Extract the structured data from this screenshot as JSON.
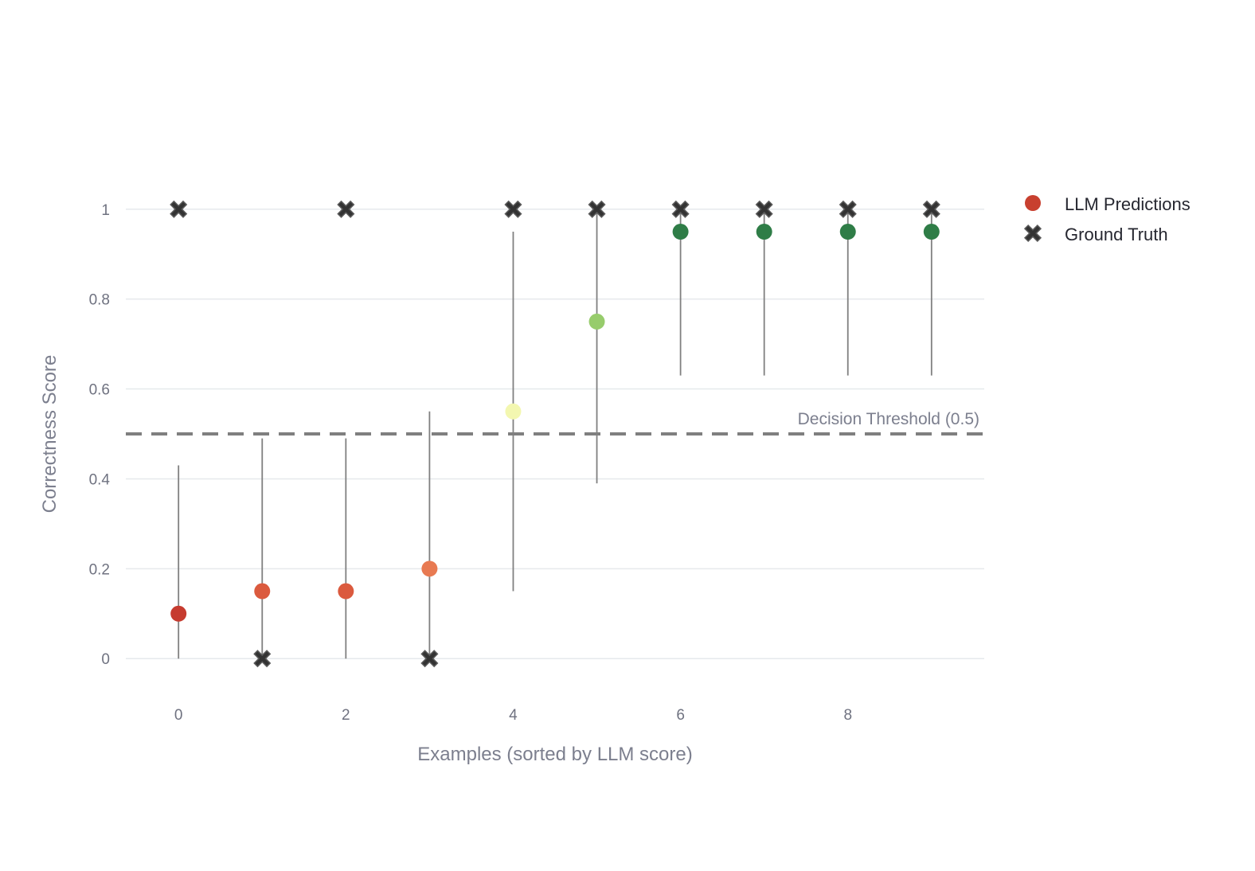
{
  "chart_data": {
    "type": "scatter",
    "title": "",
    "xlabel": "Examples (sorted by LLM score)",
    "ylabel": "Correctness Score",
    "xlim": [
      -0.63,
      9.63
    ],
    "ylim": [
      -0.09,
      1.09
    ],
    "x_ticks": [
      0,
      2,
      4,
      6,
      8
    ],
    "y_ticks": [
      0,
      0.2,
      0.4,
      0.6,
      0.8,
      1
    ],
    "y_tick_labels": [
      "0",
      "0.2",
      "0.4",
      "0.6",
      "0.8",
      "1"
    ],
    "grid": true,
    "legend_position": "top-right",
    "threshold": {
      "value": 0.5,
      "label": "Decision Threshold (0.5)",
      "color": "#7f7f7f",
      "style": "dashed"
    },
    "series": [
      {
        "name": "LLM Predictions",
        "marker": "circle",
        "legend_color": "#c8402f",
        "x": [
          0,
          1,
          2,
          3,
          4,
          5,
          6,
          7,
          8,
          9
        ],
        "y": [
          0.1,
          0.15,
          0.15,
          0.2,
          0.55,
          0.75,
          0.95,
          0.95,
          0.95,
          0.95
        ],
        "error_low": [
          0.0,
          0.0,
          0.0,
          0.0,
          0.15,
          0.39,
          0.63,
          0.63,
          0.63,
          0.63
        ],
        "error_high": [
          0.43,
          0.49,
          0.49,
          0.55,
          0.95,
          1.0,
          1.0,
          1.0,
          1.0,
          1.0
        ],
        "colors": [
          "#c63b2f",
          "#db5a3e",
          "#db5a3e",
          "#e87a52",
          "#f3f7b0",
          "#97cc6c",
          "#2f7d47",
          "#2f7d47",
          "#2f7d47",
          "#2f7d47"
        ]
      },
      {
        "name": "Ground Truth",
        "marker": "x",
        "color": "#333333",
        "x": [
          0,
          1,
          2,
          3,
          4,
          5,
          6,
          7,
          8,
          9
        ],
        "y": [
          1,
          0,
          1,
          0,
          1,
          1,
          1,
          1,
          1,
          1
        ]
      }
    ]
  }
}
